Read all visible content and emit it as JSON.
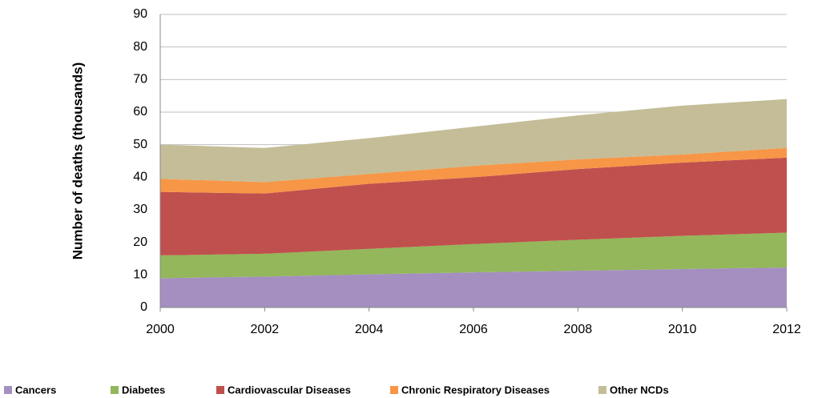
{
  "chart_data": {
    "type": "stacked_area",
    "y_axis_label": "Number of deaths (thousands)",
    "x": [
      2000,
      2002,
      2004,
      2006,
      2008,
      2010,
      2012
    ],
    "xlim": [
      2000,
      2012
    ],
    "xticks": [
      2000,
      2002,
      2004,
      2006,
      2008,
      2010,
      2012
    ],
    "ylim": [
      0,
      90
    ],
    "yticks": [
      0,
      10,
      20,
      30,
      40,
      50,
      60,
      70,
      80,
      90
    ],
    "grid": true,
    "legend": "bottom",
    "series": [
      {
        "name": "Cancers",
        "color": "#a48fc0",
        "values": [
          9.0,
          9.5,
          10.2,
          10.8,
          11.3,
          11.8,
          12.3
        ]
      },
      {
        "name": "Diabetes",
        "color": "#93b75a",
        "values": [
          7.0,
          7.0,
          7.8,
          8.7,
          9.5,
          10.2,
          10.7
        ]
      },
      {
        "name": "Cardiovascular Diseases",
        "color": "#c0504d",
        "values": [
          19.5,
          18.5,
          20.0,
          20.5,
          21.7,
          22.5,
          23.0
        ]
      },
      {
        "name": "Chronic Respiratory Diseases",
        "color": "#f79646",
        "values": [
          4.0,
          3.5,
          3.0,
          3.5,
          3.0,
          2.5,
          3.0
        ]
      },
      {
        "name": "Other NCDs",
        "color": "#c4bd97",
        "values": [
          10.5,
          10.5,
          11.0,
          12.0,
          13.5,
          15.0,
          15.0
        ]
      }
    ]
  }
}
